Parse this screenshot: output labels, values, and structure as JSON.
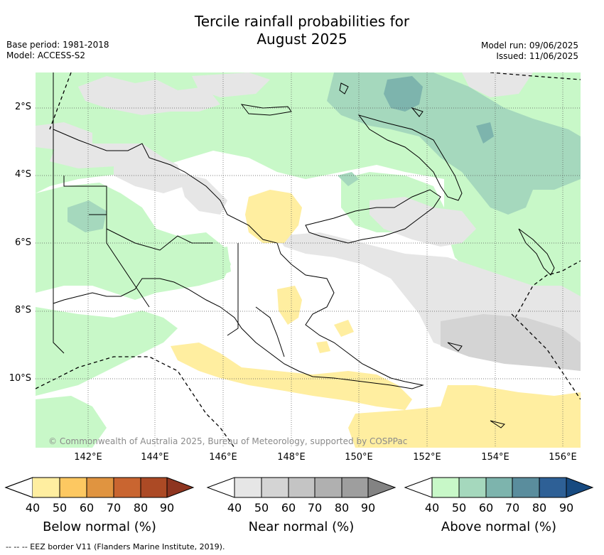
{
  "title_line1": "Tercile rainfall probabilities for",
  "title_line2": "August 2025",
  "base_period": "Base period: 1981-2018",
  "model": "Model: ACCESS-S2",
  "model_run": "Model run: 09/06/2025",
  "issued": "Issued: 11/06/2025",
  "lat_labels": [
    "2°S",
    "4°S",
    "6°S",
    "8°S",
    "10°S"
  ],
  "lon_labels": [
    "142°E",
    "144°E",
    "146°E",
    "148°E",
    "150°E",
    "152°E",
    "154°E",
    "156°E"
  ],
  "copyright": "© Commonwealth of Australia 2025, Bureau of Meteorology, supported by COSPPac",
  "colorbars": [
    {
      "title": "Below normal (%)",
      "ticks": [
        "40",
        "50",
        "60",
        "70",
        "80",
        "90"
      ],
      "colors": [
        "#ffeea0",
        "#fdc861",
        "#e09440",
        "#c96530",
        "#ac4a25",
        "#8e3520"
      ]
    },
    {
      "title": "Near normal (%)",
      "ticks": [
        "40",
        "50",
        "60",
        "70",
        "80",
        "90"
      ],
      "colors": [
        "#e6e6e6",
        "#d4d4d4",
        "#c4c4c4",
        "#b0b0b0",
        "#9e9e9e",
        "#838383"
      ]
    },
    {
      "title": "Above normal (%)",
      "ticks": [
        "40",
        "50",
        "60",
        "70",
        "80",
        "90"
      ],
      "colors": [
        "#c8f8c8",
        "#a5d8bd",
        "#7db4ad",
        "#5a8d9d",
        "#2e6096",
        "#174a80"
      ]
    }
  ],
  "footnote": "-- -- -- EEZ border V11 (Flanders Marine Institute, 2019).",
  "colors": {
    "below_40": "#ffeea0",
    "near_40": "#e6e6e6",
    "above_40": "#c8f8c8",
    "above_50": "#a5d8bd",
    "above_60": "#7db4ad"
  }
}
